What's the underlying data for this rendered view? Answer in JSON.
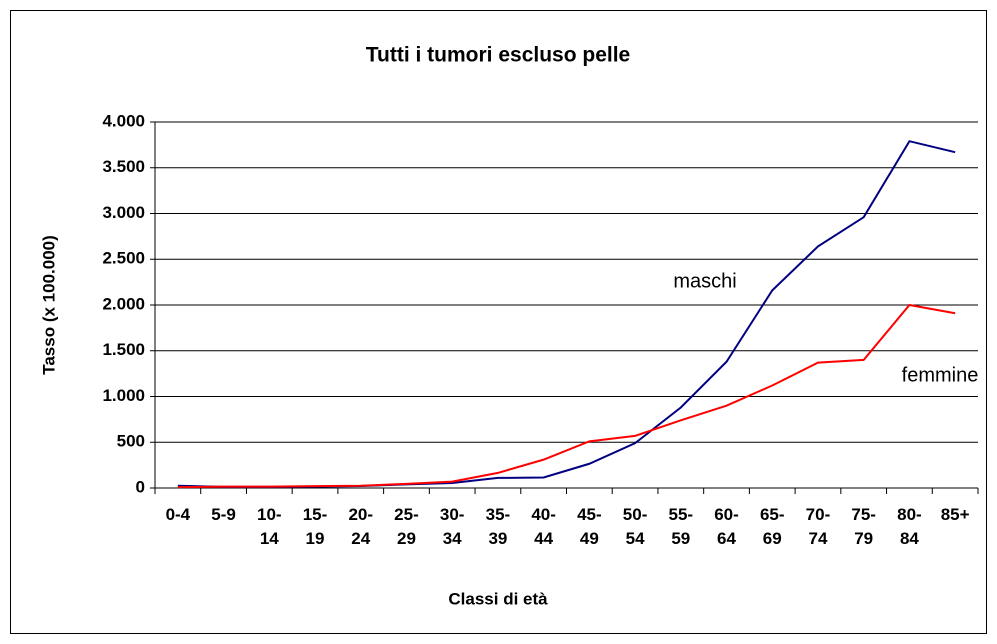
{
  "chart_data": {
    "type": "line",
    "title": "Tutti i tumori escluso pelle",
    "x_label": "Classi di età",
    "y_label": "Tasso (x 100.000)",
    "categories": [
      "0-4",
      "5-9",
      "10- 14",
      "15- 19",
      "20- 24",
      "25- 29",
      "30- 34",
      "35- 39",
      "40- 44",
      "45- 49",
      "50- 54",
      "55- 59",
      "60- 64",
      "65- 69",
      "70- 74",
      "75- 79",
      "80- 84",
      "85+"
    ],
    "series": [
      {
        "name": "maschi",
        "color": "#000080",
        "values": [
          25,
          12,
          12,
          15,
          22,
          40,
          55,
          110,
          115,
          265,
          490,
          880,
          1380,
          2160,
          2640,
          2960,
          3790,
          3670
        ]
      },
      {
        "name": "femmine",
        "color": "#ff0000",
        "values": [
          10,
          15,
          15,
          20,
          25,
          45,
          70,
          165,
          310,
          510,
          570,
          740,
          900,
          1120,
          1370,
          1400,
          2000,
          1910
        ]
      }
    ],
    "ylim": [
      0,
      4000
    ],
    "yticks": [
      0,
      500,
      {
        "value": 1000,
        "label": "1.000"
      },
      {
        "value": 1500,
        "label": "1.500"
      },
      {
        "value": 2000,
        "label": "2.000"
      },
      {
        "value": 2500,
        "label": "2.500"
      },
      {
        "value": 3000,
        "label": "3.000"
      },
      {
        "value": 3500,
        "label": "3.500"
      },
      {
        "value": 4000,
        "label": "4.000"
      }
    ],
    "grid": true
  }
}
